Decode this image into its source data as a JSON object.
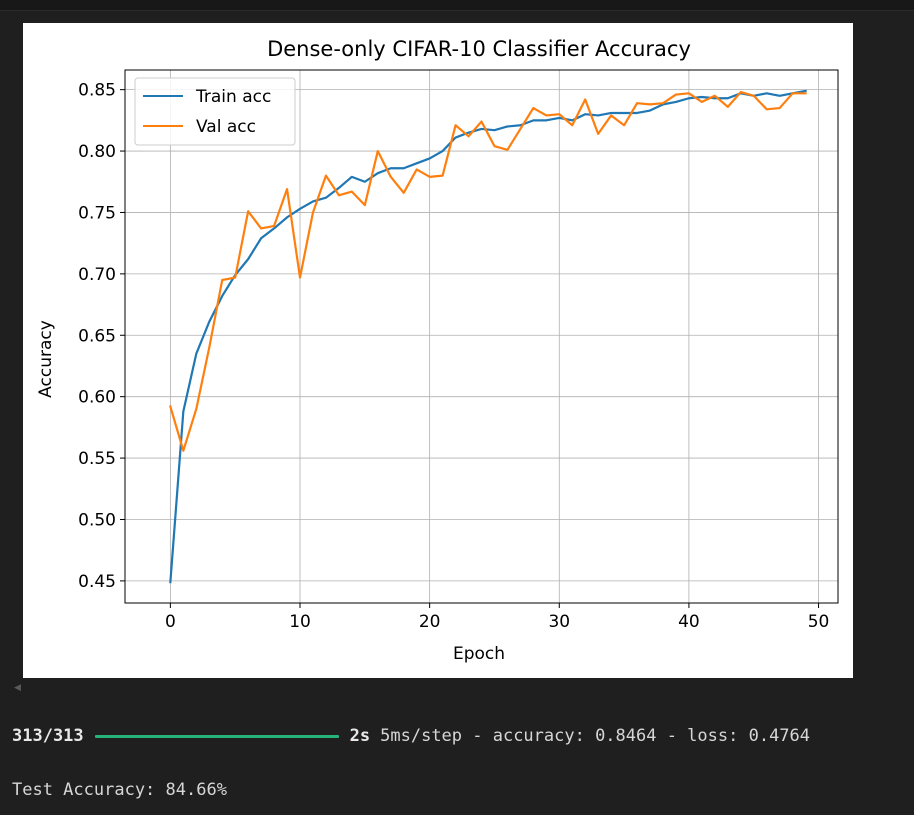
{
  "console": {
    "progress_steps": "313/313",
    "progress_fraction": 1.0,
    "progress_time": "2s",
    "progress_metrics": "5ms/step - accuracy: 0.8464 - loss: 0.4764",
    "test_result": "Test Accuracy: 84.66%"
  },
  "colors": {
    "train": "#1f77b4",
    "val": "#ff7f0e",
    "progress_bar": "#25b37a"
  },
  "chart_data": {
    "type": "line",
    "title": "Dense-only CIFAR-10 Classifier Accuracy",
    "xlabel": "Epoch",
    "ylabel": "Accuracy",
    "xlim": [
      -3.5,
      51.5
    ],
    "ylim": [
      0.432,
      0.866
    ],
    "xticks": [
      0,
      10,
      20,
      30,
      40,
      50
    ],
    "yticks": [
      0.45,
      0.5,
      0.55,
      0.6,
      0.65,
      0.7,
      0.75,
      0.8,
      0.85
    ],
    "grid": true,
    "legend_position": "top-left",
    "x": [
      0,
      1,
      2,
      3,
      4,
      5,
      6,
      7,
      8,
      9,
      10,
      11,
      12,
      13,
      14,
      15,
      16,
      17,
      18,
      19,
      20,
      21,
      22,
      23,
      24,
      25,
      26,
      27,
      28,
      29,
      30,
      31,
      32,
      33,
      34,
      35,
      36,
      37,
      38,
      39,
      40,
      41,
      42,
      43,
      44,
      45,
      46,
      47,
      48,
      49
    ],
    "series": [
      {
        "name": "Train acc",
        "color": "#1f77b4",
        "values": [
          0.449,
          0.588,
          0.635,
          0.661,
          0.682,
          0.699,
          0.712,
          0.729,
          0.737,
          0.746,
          0.753,
          0.759,
          0.762,
          0.77,
          0.779,
          0.775,
          0.782,
          0.786,
          0.786,
          0.79,
          0.794,
          0.8,
          0.811,
          0.815,
          0.818,
          0.817,
          0.82,
          0.821,
          0.825,
          0.825,
          0.827,
          0.825,
          0.83,
          0.829,
          0.831,
          0.831,
          0.831,
          0.833,
          0.838,
          0.84,
          0.843,
          0.844,
          0.843,
          0.843,
          0.847,
          0.845,
          0.847,
          0.845,
          0.847,
          0.849
        ]
      },
      {
        "name": "Val acc",
        "color": "#ff7f0e",
        "values": [
          0.592,
          0.556,
          0.59,
          0.64,
          0.695,
          0.697,
          0.751,
          0.737,
          0.739,
          0.769,
          0.697,
          0.75,
          0.78,
          0.764,
          0.767,
          0.756,
          0.8,
          0.779,
          0.766,
          0.785,
          0.779,
          0.78,
          0.821,
          0.812,
          0.824,
          0.804,
          0.801,
          0.818,
          0.835,
          0.829,
          0.83,
          0.821,
          0.842,
          0.814,
          0.829,
          0.821,
          0.839,
          0.838,
          0.839,
          0.846,
          0.847,
          0.84,
          0.845,
          0.836,
          0.848,
          0.845,
          0.834,
          0.835,
          0.847,
          0.847
        ]
      }
    ]
  }
}
